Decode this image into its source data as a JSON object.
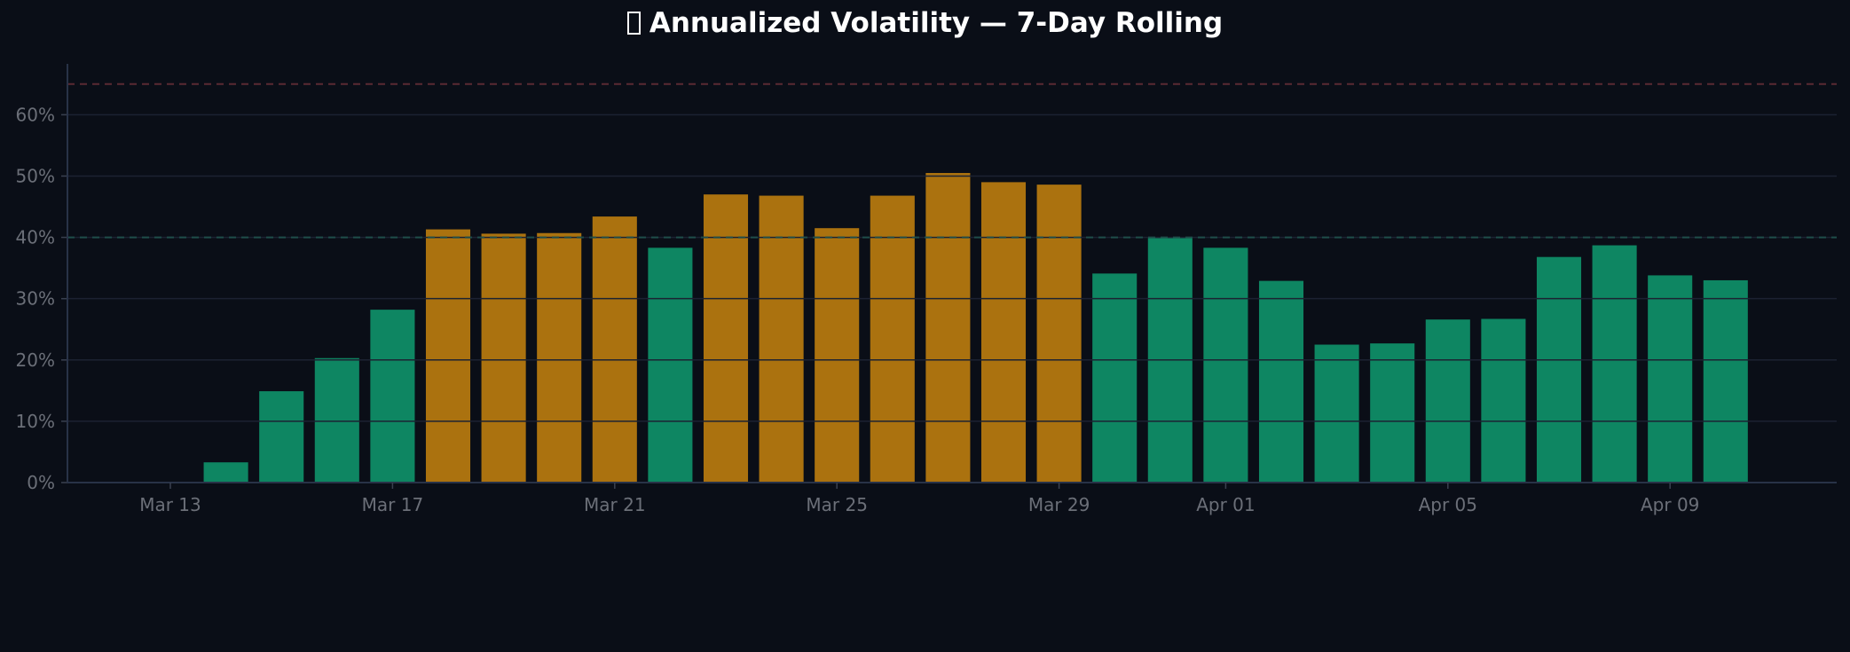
{
  "chart_data": {
    "type": "bar",
    "title": "Annualized Volatility — 7-Day Rolling",
    "title_icon": "missing-glyph-box",
    "xlabel": "",
    "ylabel": "",
    "x_tick_labels": [
      "Mar 13",
      "Mar 17",
      "Mar 21",
      "Mar 25",
      "Mar 29",
      "Apr 01",
      "Apr 05",
      "Apr 09"
    ],
    "x_tick_dates": [
      "2025-03-13",
      "2025-03-17",
      "2025-03-21",
      "2025-03-25",
      "2025-03-29",
      "2025-04-01",
      "2025-04-05",
      "2025-04-09"
    ],
    "y_tick_labels": [
      "0%",
      "10%",
      "20%",
      "30%",
      "40%",
      "50%",
      "60%"
    ],
    "y_ticks": [
      0,
      10,
      20,
      30,
      40,
      50,
      60
    ],
    "ylim": [
      0,
      68.3
    ],
    "xlim": [
      "2025-03-11",
      "2025-04-11"
    ],
    "grid": true,
    "categories": [
      "2025-03-14",
      "2025-03-15",
      "2025-03-16",
      "2025-03-17",
      "2025-03-18",
      "2025-03-19",
      "2025-03-20",
      "2025-03-21",
      "2025-03-22",
      "2025-03-23",
      "2025-03-24",
      "2025-03-25",
      "2025-03-26",
      "2025-03-27",
      "2025-03-28",
      "2025-03-29",
      "2025-03-30",
      "2025-03-31",
      "2025-04-01",
      "2025-04-02",
      "2025-04-03",
      "2025-04-04",
      "2025-04-05",
      "2025-04-06",
      "2025-04-07",
      "2025-04-08",
      "2025-04-09",
      "2025-04-10"
    ],
    "values": [
      3.3,
      14.9,
      20.3,
      28.2,
      41.3,
      40.6,
      40.7,
      43.4,
      38.3,
      47.0,
      46.8,
      41.5,
      46.8,
      50.5,
      49.0,
      48.6,
      34.1,
      39.9,
      38.3,
      32.9,
      22.5,
      22.7,
      26.6,
      26.7,
      36.8,
      38.7,
      33.8,
      33.0
    ],
    "reference_lines": [
      {
        "value": 65,
        "color": "#5a2a33",
        "style": "dashed"
      },
      {
        "value": 40,
        "color": "#1f4d4a",
        "style": "dashed"
      }
    ],
    "colors": {
      "below_threshold": "#0e8662",
      "above_threshold": "#ab720f",
      "background": "#0a0e17",
      "grid": "#1c2232",
      "axis": "#283247"
    },
    "threshold": 40
  }
}
